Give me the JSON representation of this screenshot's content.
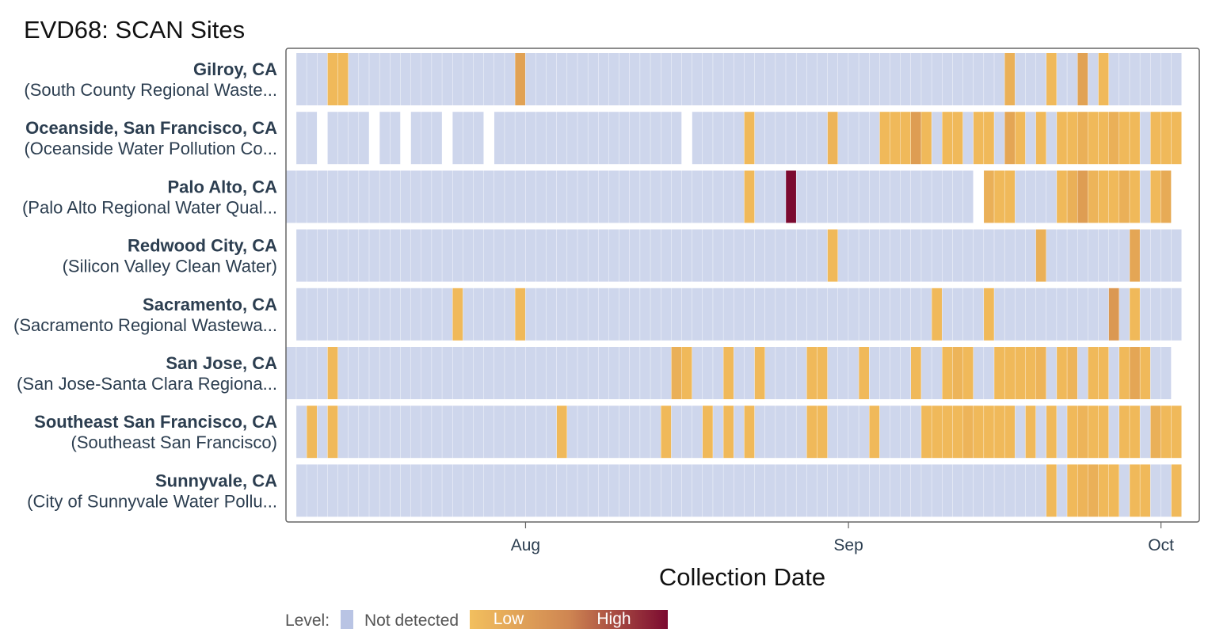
{
  "title": "EVD68: SCAN Sites",
  "colors": {
    "not_detected": "#ced6ec",
    "low": "#f0b95a",
    "mid": "#d28a4e",
    "high": "#7b0a30",
    "frame": "#666666"
  },
  "chart_data": {
    "type": "heatmap",
    "title": "EVD68: SCAN Sites",
    "xlabel": "Collection Date",
    "ylabel": "",
    "x_range": [
      "2024-07-09",
      "2024-10-03"
    ],
    "x_ticks": [
      {
        "date": "2024-08-01",
        "label": "Aug"
      },
      {
        "date": "2024-09-01",
        "label": "Sep"
      },
      {
        "date": "2024-10-01",
        "label": "Oct"
      }
    ],
    "legend": {
      "title": "Level:",
      "not_detected": "Not detected",
      "low": "Low",
      "high": "High"
    },
    "level_scale": "0 = not detected, 1 = low ... 3 = high",
    "sites": [
      {
        "name": "Gilroy, CA",
        "facility": "(South County Regional Waste...",
        "start": 1,
        "end": 85,
        "gaps": [],
        "detections": [
          [
            4,
            1
          ],
          [
            5,
            1
          ],
          [
            22,
            1.5
          ],
          [
            69,
            1.2
          ],
          [
            73,
            1
          ],
          [
            76,
            1.5
          ],
          [
            78,
            1
          ]
        ]
      },
      {
        "name": "Oceanside, San Francisco, CA",
        "facility": "(Oceanside Water Pollution Co...",
        "start": 1,
        "end": 85,
        "gaps": [
          3,
          8,
          11,
          15,
          19,
          38
        ],
        "detections": [
          [
            44,
            1
          ],
          [
            52,
            1.1
          ],
          [
            57,
            1
          ],
          [
            58,
            1
          ],
          [
            59,
            1
          ],
          [
            60,
            1.6
          ],
          [
            61,
            1
          ],
          [
            63,
            1
          ],
          [
            64,
            1
          ],
          [
            66,
            1
          ],
          [
            67,
            1
          ],
          [
            69,
            1.4
          ],
          [
            70,
            1
          ],
          [
            72,
            1
          ],
          [
            74,
            1
          ],
          [
            75,
            1
          ],
          [
            76,
            1.2
          ],
          [
            77,
            1
          ],
          [
            78,
            1
          ],
          [
            79,
            1.2
          ],
          [
            80,
            1
          ],
          [
            81,
            1
          ],
          [
            83,
            1
          ],
          [
            84,
            1
          ],
          [
            85,
            1
          ]
        ]
      },
      {
        "name": "Palo Alto, CA",
        "facility": "(Palo Alto Regional Water Qual...",
        "start": 0,
        "end": 84,
        "gaps": [
          66
        ],
        "detections": [
          [
            44,
            1
          ],
          [
            48,
            3
          ],
          [
            67,
            1.2
          ],
          [
            68,
            1
          ],
          [
            69,
            1
          ],
          [
            74,
            1
          ],
          [
            75,
            1.2
          ],
          [
            76,
            1.6
          ],
          [
            77,
            1.1
          ],
          [
            78,
            1
          ],
          [
            79,
            1
          ],
          [
            80,
            1.2
          ],
          [
            81,
            1
          ],
          [
            83,
            1
          ],
          [
            84,
            1.3
          ]
        ]
      },
      {
        "name": "Redwood City, CA",
        "facility": "(Silicon Valley Clean Water)",
        "start": 1,
        "end": 85,
        "gaps": [],
        "detections": [
          [
            52,
            1
          ],
          [
            72,
            1.2
          ],
          [
            81,
            1.4
          ]
        ]
      },
      {
        "name": "Sacramento, CA",
        "facility": "(Sacramento Regional Wastewa...",
        "start": 1,
        "end": 85,
        "gaps": [],
        "detections": [
          [
            16,
            1
          ],
          [
            22,
            1
          ],
          [
            62,
            1
          ],
          [
            67,
            1
          ],
          [
            79,
            1.7
          ],
          [
            81,
            1
          ]
        ]
      },
      {
        "name": "San Jose, CA",
        "facility": "(San Jose-Santa Clara Regiona...",
        "start": 0,
        "end": 84,
        "gaps": [],
        "detections": [
          [
            4,
            1
          ],
          [
            37,
            1.2
          ],
          [
            38,
            1
          ],
          [
            42,
            1
          ],
          [
            45,
            1
          ],
          [
            50,
            1
          ],
          [
            51,
            1
          ],
          [
            55,
            1
          ],
          [
            60,
            1
          ],
          [
            63,
            1
          ],
          [
            64,
            1.1
          ],
          [
            65,
            1
          ],
          [
            68,
            1
          ],
          [
            69,
            1
          ],
          [
            70,
            1
          ],
          [
            71,
            1
          ],
          [
            72,
            1.1
          ],
          [
            74,
            1
          ],
          [
            75,
            1.1
          ],
          [
            77,
            1
          ],
          [
            78,
            1
          ],
          [
            80,
            1
          ],
          [
            81,
            1.4
          ],
          [
            82,
            1
          ]
        ]
      },
      {
        "name": "Southeast San Francisco, CA",
        "facility": "(Southeast San Francisco)",
        "start": 1,
        "end": 85,
        "gaps": [],
        "detections": [
          [
            2,
            1
          ],
          [
            4,
            1
          ],
          [
            26,
            1
          ],
          [
            36,
            1
          ],
          [
            40,
            1
          ],
          [
            42,
            1
          ],
          [
            44,
            1
          ],
          [
            50,
            1
          ],
          [
            51,
            1
          ],
          [
            56,
            1
          ],
          [
            61,
            1
          ],
          [
            62,
            1
          ],
          [
            63,
            1
          ],
          [
            64,
            1
          ],
          [
            65,
            1.1
          ],
          [
            66,
            1
          ],
          [
            67,
            1
          ],
          [
            68,
            1
          ],
          [
            69,
            1
          ],
          [
            71,
            1
          ],
          [
            73,
            1
          ],
          [
            75,
            1
          ],
          [
            76,
            1.1
          ],
          [
            77,
            1
          ],
          [
            78,
            1
          ],
          [
            80,
            1
          ],
          [
            81,
            1
          ],
          [
            83,
            1.2
          ],
          [
            84,
            1
          ],
          [
            85,
            1
          ]
        ]
      },
      {
        "name": "Sunnyvale, CA",
        "facility": "(City of Sunnyvale Water Pollu...",
        "start": 1,
        "end": 85,
        "gaps": [],
        "detections": [
          [
            73,
            1
          ],
          [
            75,
            1
          ],
          [
            76,
            1.1
          ],
          [
            77,
            1.2
          ],
          [
            78,
            1
          ],
          [
            79,
            1
          ],
          [
            81,
            1
          ],
          [
            82,
            1
          ],
          [
            85,
            1
          ]
        ]
      }
    ]
  }
}
